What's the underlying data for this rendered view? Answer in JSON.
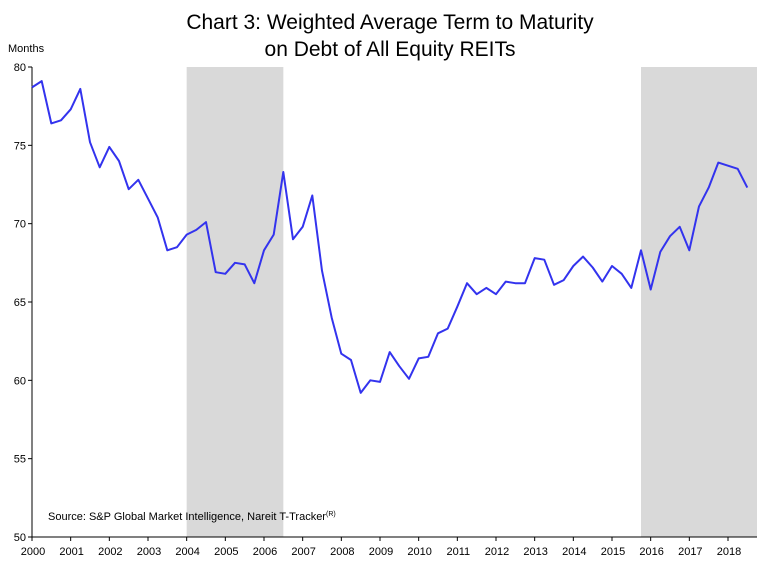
{
  "chart_data": {
    "type": "line",
    "title_line1": "Chart 3: Weighted Average Term to Maturity",
    "title_line2": "on Debt of All Equity REITs",
    "ylabel": "Months",
    "xlabel": "",
    "source": "Source: S&P Global Market Intelligence, Nareit T-Tracker",
    "source_superscript": "(R)",
    "ylim": [
      50,
      80
    ],
    "yticks": [
      "50",
      "55",
      "60",
      "65",
      "70",
      "75",
      "80"
    ],
    "xlim": [
      2000,
      2018.75
    ],
    "xticks": [
      "2000",
      "2001",
      "2002",
      "2003",
      "2004",
      "2005",
      "2006",
      "2007",
      "2008",
      "2009",
      "2010",
      "2011",
      "2012",
      "2013",
      "2014",
      "2015",
      "2016",
      "2017",
      "2018"
    ],
    "line_color": "#3333ee",
    "shade_color": "#d9d9d9",
    "shaded_periods": [
      [
        2004.0,
        2006.5
      ],
      [
        2015.75,
        2018.75
      ]
    ],
    "legend": "none",
    "grid": false,
    "series": [
      {
        "x": [
          2000.0,
          2000.25,
          2000.5,
          2000.75,
          2001.0,
          2001.25,
          2001.5,
          2001.75,
          2002.0,
          2002.25,
          2002.5,
          2002.75,
          2003.0,
          2003.25,
          2003.5,
          2003.75,
          2004.0,
          2004.25,
          2004.5,
          2004.75,
          2005.0,
          2005.25,
          2005.5,
          2005.75,
          2006.0,
          2006.25,
          2006.5,
          2006.75,
          2007.0,
          2007.25,
          2007.5,
          2007.75,
          2008.0,
          2008.25,
          2008.5,
          2008.75,
          2009.0,
          2009.25,
          2009.5,
          2009.75,
          2010.0,
          2010.25,
          2010.5,
          2010.75,
          2011.0,
          2011.25,
          2011.5,
          2011.75,
          2012.0,
          2012.25,
          2012.5,
          2012.75,
          2013.0,
          2013.25,
          2013.5,
          2013.75,
          2014.0,
          2014.25,
          2014.5,
          2014.75,
          2015.0,
          2015.25,
          2015.5,
          2015.75,
          2016.0,
          2016.25,
          2016.5,
          2016.75,
          2017.0,
          2017.25,
          2017.5,
          2017.75,
          2018.0,
          2018.25,
          2018.5
        ],
        "y": [
          78.7,
          79.1,
          76.4,
          76.6,
          77.3,
          78.6,
          75.2,
          73.6,
          74.9,
          74.0,
          72.2,
          72.8,
          71.6,
          70.4,
          68.3,
          68.5,
          69.3,
          69.6,
          70.1,
          66.9,
          66.8,
          67.5,
          67.4,
          66.2,
          68.3,
          69.3,
          73.3,
          69.0,
          69.8,
          71.8,
          67.0,
          64.0,
          61.7,
          61.3,
          59.2,
          60.0,
          59.9,
          61.8,
          60.9,
          60.1,
          61.4,
          61.5,
          63.0,
          63.3,
          64.7,
          66.2,
          65.5,
          65.9,
          65.5,
          66.3,
          66.2,
          66.2,
          67.8,
          67.7,
          66.1,
          66.4,
          67.3,
          67.9,
          67.2,
          66.3,
          67.3,
          66.8,
          65.9,
          68.3,
          65.8,
          68.2,
          69.2,
          69.8,
          68.3,
          71.1,
          72.3,
          73.9,
          73.7,
          73.5,
          72.3
        ]
      }
    ]
  }
}
